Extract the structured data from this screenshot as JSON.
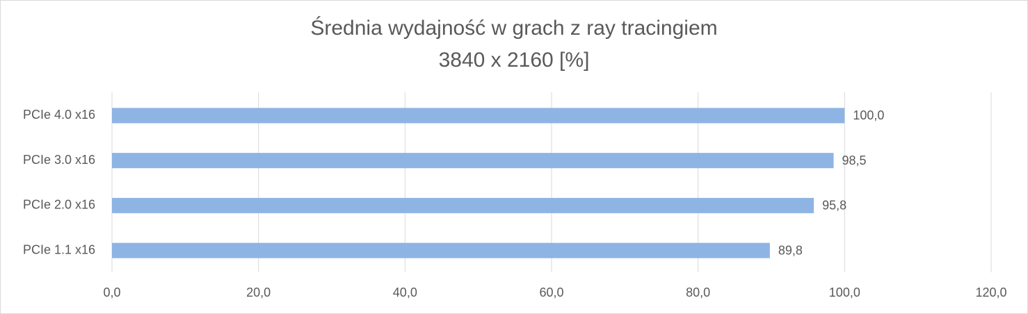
{
  "chart_data": {
    "type": "bar",
    "orientation": "horizontal",
    "title": "Średnia wydajność w grach z ray tracingiem",
    "subtitle": "3840 x 2160 [%]",
    "categories": [
      "PCIe 4.0 x16",
      "PCIe 3.0 x16",
      "PCIe 2.0 x16",
      "PCIe 1.1 x16"
    ],
    "values": [
      100.0,
      98.5,
      95.8,
      89.8
    ],
    "value_labels": [
      "100,0",
      "98,5",
      "95,8",
      "89,8"
    ],
    "color": "#8eb4e3",
    "xlim": [
      0,
      120
    ],
    "xticks": [
      {
        "value": 0,
        "label": "0,0"
      },
      {
        "value": 20,
        "label": "20,0"
      },
      {
        "value": 40,
        "label": "40,0"
      },
      {
        "value": 60,
        "label": "60,0"
      },
      {
        "value": 80,
        "label": "80,0"
      },
      {
        "value": 100,
        "label": "100,0"
      },
      {
        "value": 120,
        "label": "120,0"
      }
    ],
    "grid": true
  }
}
